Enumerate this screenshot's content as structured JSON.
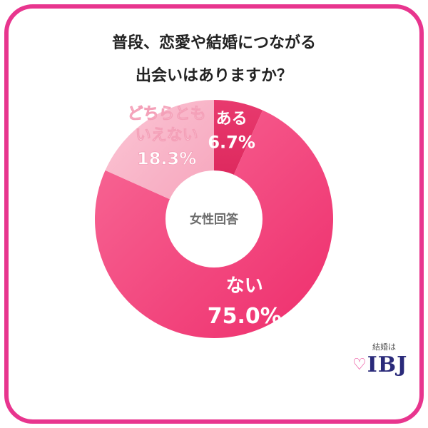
{
  "title_lines": [
    "普段、恋愛や結婚につながる",
    "出会いはありますか？"
  ],
  "center_label": "女性回答",
  "logo": {
    "small": "結婚は",
    "main": "IBJ"
  },
  "colors": {
    "frame": "#e8358e"
  },
  "chart_data": {
    "type": "pie",
    "title": "普段、恋愛や結婚につながる出会いはありますか？",
    "slices": [
      {
        "label": "ある",
        "value": 6.7,
        "value_text": "6.7%",
        "color": "#e02a5e"
      },
      {
        "label": "ない",
        "value": 75.0,
        "value_text": "75.0%",
        "color": "#f2457d"
      },
      {
        "label": "どちらともいえない",
        "label_lines": [
          "どちらとも",
          "いえない"
        ],
        "value": 18.3,
        "value_text": "18.3%",
        "color": "#f9b3c7"
      }
    ]
  }
}
